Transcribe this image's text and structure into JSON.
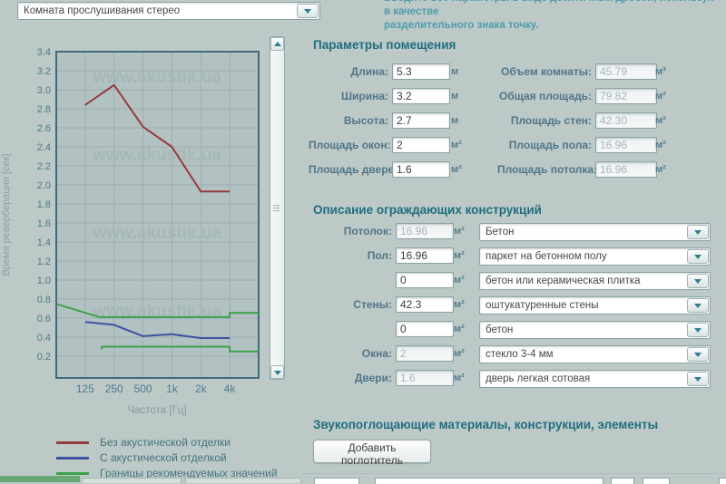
{
  "room_select": {
    "value": "Комната прослушивания стерео"
  },
  "instructions": {
    "line1": "Вводите все параметры в виде десятичных дробей, используя в качестве",
    "line2": "разделительного знака точку."
  },
  "chart_data": {
    "type": "line",
    "title": "",
    "xlabel": "Частота [Гц]",
    "ylabel": "Время реверберации [сек]",
    "x_ticks": [
      "125",
      "250",
      "500",
      "1k",
      "2k",
      "4k"
    ],
    "y_ticks": [
      "3.4",
      "3.2",
      "3.0",
      "2.8",
      "2.6",
      "2.4",
      "2.2",
      "2.0",
      "1.8",
      "1.6",
      "1.4",
      "1.2",
      "1.0",
      "0.8",
      "0.6",
      "0.4",
      "0.2"
    ],
    "ylim": [
      0,
      3.4
    ],
    "grid": true,
    "legend_position": "bottom-left",
    "watermark": "www.akustik.ua",
    "series": [
      {
        "name": "Без акустической отделки",
        "color": "#943b3e",
        "points": [
          [
            0,
            2.84
          ],
          [
            1,
            3.05
          ],
          [
            2,
            2.61
          ],
          [
            3,
            2.4
          ],
          [
            4,
            1.93
          ],
          [
            5,
            1.93
          ]
        ]
      },
      {
        "name": "С акустической отделкой",
        "color": "#3b53a0",
        "points": [
          [
            0,
            0.56
          ],
          [
            1,
            0.53
          ],
          [
            2,
            0.41
          ],
          [
            3,
            0.43
          ],
          [
            4,
            0.39
          ],
          [
            5,
            0.39
          ]
        ]
      },
      {
        "name": "Границы рекомендуемых значений (верхняя)",
        "color": "#3da04b",
        "points": [
          [
            -1,
            0.75
          ],
          [
            0.5,
            0.61
          ],
          [
            5,
            0.61
          ],
          [
            5,
            0.655
          ],
          [
            6,
            0.655
          ]
        ]
      },
      {
        "name": "Границы рекомендуемых значений (нижняя)",
        "color": "#3da04b",
        "points": [
          [
            0.57,
            0.27
          ],
          [
            0.57,
            0.3
          ],
          [
            5,
            0.3
          ],
          [
            5,
            0.25
          ],
          [
            6,
            0.25
          ]
        ]
      }
    ],
    "legend": [
      {
        "label": "Без акустической отделки",
        "color": "#943b3e"
      },
      {
        "label": "С акустической отделкой",
        "color": "#3b53a0"
      },
      {
        "label": "Границы рекомендуемых значений",
        "color": "#3da04b"
      }
    ]
  },
  "room_params": {
    "title": "Параметры помещения",
    "left": [
      {
        "label": "Длина:",
        "value": "5.3",
        "unit": "м"
      },
      {
        "label": "Ширина:",
        "value": "3.2",
        "unit": "м"
      },
      {
        "label": "Высота:",
        "value": "2.7",
        "unit": "м"
      },
      {
        "label": "Площадь окон:",
        "value": "2",
        "unit": "м²"
      },
      {
        "label": "Площадь дверей:",
        "value": "1.6",
        "unit": "м²"
      }
    ],
    "right": [
      {
        "label": "Объем комнаты:",
        "value": "45.79",
        "unit": "м³"
      },
      {
        "label": "Общая площадь:",
        "value": "79.82",
        "unit": "м²"
      },
      {
        "label": "Площадь стен:",
        "value": "42.30",
        "unit": "м²"
      },
      {
        "label": "Площадь пола:",
        "value": "16.96",
        "unit": "м²"
      },
      {
        "label": "Площадь потолка:",
        "value": "16.96",
        "unit": "м²"
      }
    ]
  },
  "constructions": {
    "title": "Описание ограждающих конструкций",
    "rows": [
      {
        "label": "Потолок:",
        "value": "16.96",
        "unit": "м²",
        "material": "Бетон"
      },
      {
        "label": "Пол:",
        "value": "16.96",
        "unit": "м²",
        "material": "паркет на бетонном полу"
      },
      {
        "label": "",
        "value": "0",
        "unit": "м²",
        "material": "бетон или керамическая плитка"
      },
      {
        "label": "Стены:",
        "value": "42.3",
        "unit": "м²",
        "material": "оштукатуренные стены"
      },
      {
        "label": "",
        "value": "0",
        "unit": "м²",
        "material": "бетон"
      },
      {
        "label": "Окна:",
        "value": "2",
        "unit": "м²",
        "material": "стекло 3-4 мм"
      },
      {
        "label": "Двери:",
        "value": "1.6",
        "unit": "м²",
        "material": "дверь легкая сотовая"
      }
    ]
  },
  "absorbers": {
    "title": "Звукопоглощающие материалы, конструкции, элементы",
    "add_button_label": "Добавить поглотитель"
  },
  "colors": {
    "background": "#bdc9c6",
    "heading": "#1e6e80",
    "label": "#50758a",
    "plot_bg": "#b2c1c1",
    "grid": "#9db0b1",
    "plot_border": "#3f6b7c",
    "accent_teal": "#2f7e92"
  }
}
